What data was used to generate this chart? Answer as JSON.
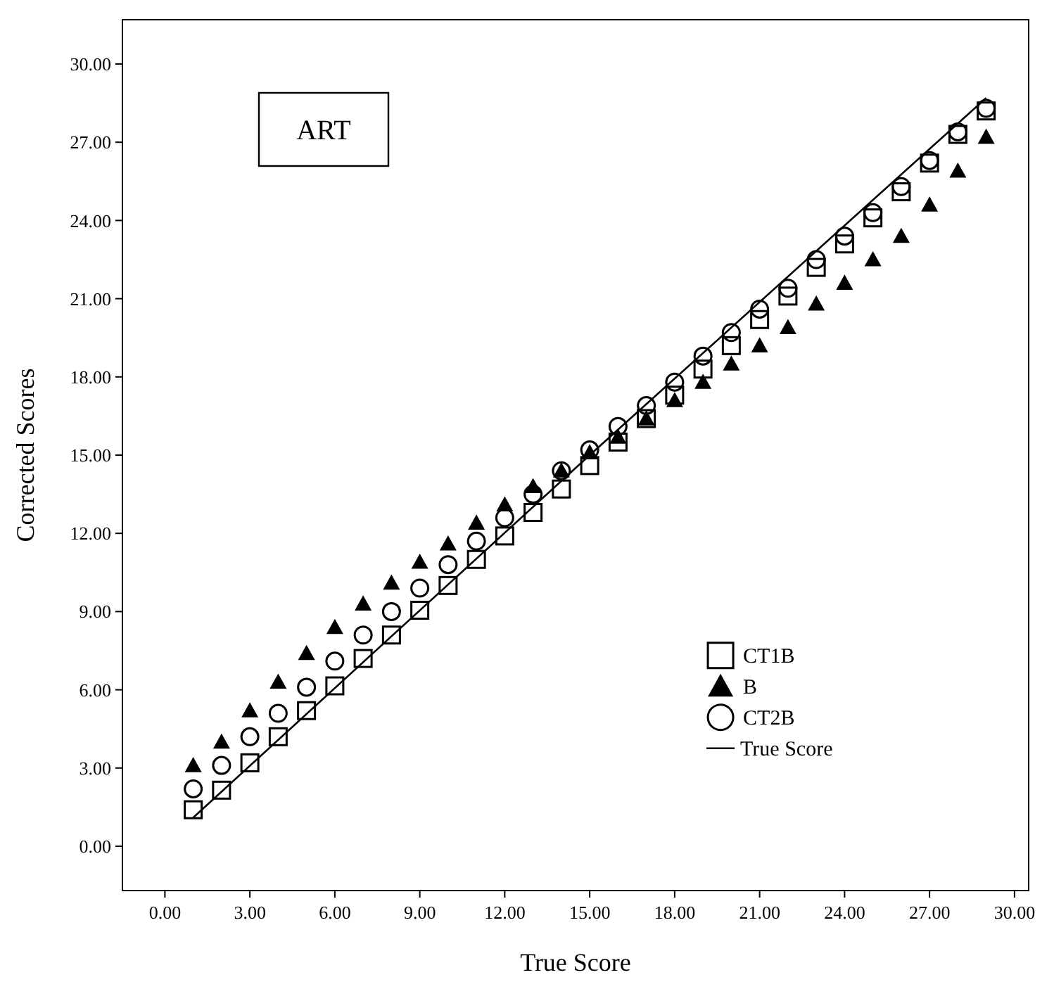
{
  "chart_data": {
    "type": "scatter",
    "xlabel": "True Score",
    "ylabel": "Corrected Scores",
    "annotations": [
      "ART"
    ],
    "x": [
      1,
      2,
      3,
      4,
      5,
      6,
      7,
      8,
      9,
      10,
      11,
      12,
      13,
      14,
      15,
      16,
      17,
      18,
      19,
      20,
      21,
      22,
      23,
      24,
      25,
      26,
      27,
      28,
      29
    ],
    "series": [
      {
        "name": "CT1B",
        "color": "#000000",
        "marker": "square",
        "values": [
          1.4,
          2.15,
          3.2,
          4.2,
          5.2,
          6.15,
          7.2,
          8.1,
          9.05,
          10.0,
          11.0,
          11.9,
          12.8,
          13.7,
          14.6,
          15.5,
          16.4,
          17.3,
          18.3,
          19.2,
          20.2,
          21.1,
          22.2,
          23.1,
          24.1,
          25.1,
          26.2,
          27.3,
          28.2
        ]
      },
      {
        "name": "B",
        "color": "#000000",
        "marker": "triangle",
        "values": [
          3.1,
          4.0,
          5.2,
          6.3,
          7.4,
          8.4,
          9.3,
          10.1,
          10.9,
          11.6,
          12.4,
          13.1,
          13.8,
          14.4,
          15.1,
          15.7,
          16.4,
          17.1,
          17.8,
          18.5,
          19.2,
          19.9,
          20.8,
          21.6,
          22.5,
          23.4,
          24.6,
          25.9,
          27.2
        ]
      },
      {
        "name": "CT2B",
        "color": "#000000",
        "marker": "circle",
        "values": [
          2.2,
          3.1,
          4.2,
          5.1,
          6.1,
          7.1,
          8.1,
          9.0,
          9.9,
          10.8,
          11.7,
          12.6,
          13.5,
          14.4,
          15.2,
          16.1,
          16.9,
          17.8,
          18.8,
          19.7,
          20.6,
          21.4,
          22.5,
          23.4,
          24.3,
          25.3,
          26.3,
          27.4,
          28.3
        ]
      },
      {
        "name": "True Score",
        "type": "line",
        "color": "#000000",
        "marker": "none",
        "line_style": "solid",
        "x": [
          1,
          15,
          29
        ],
        "values": [
          1.1,
          15.0,
          28.7
        ]
      }
    ],
    "xlim": [
      -1.5,
      30.5
    ],
    "ylim": [
      -1.7,
      31.7
    ],
    "xticks": [
      {
        "value": 0,
        "label": "0.00"
      },
      {
        "value": 3,
        "label": "3.00"
      },
      {
        "value": 6,
        "label": "6.00"
      },
      {
        "value": 9,
        "label": "9.00"
      },
      {
        "value": 12,
        "label": "12.00"
      },
      {
        "value": 15,
        "label": "15.00"
      },
      {
        "value": 18,
        "label": "18.00"
      },
      {
        "value": 21,
        "label": "21.00"
      },
      {
        "value": 24,
        "label": "24.00"
      },
      {
        "value": 27,
        "label": "27.00"
      },
      {
        "value": 30,
        "label": "30.00"
      }
    ],
    "yticks": [
      {
        "value": 0,
        "label": "0.00"
      },
      {
        "value": 3,
        "label": "3.00"
      },
      {
        "value": 6,
        "label": "6.00"
      },
      {
        "value": 9,
        "label": "9.00"
      },
      {
        "value": 12,
        "label": "12.00"
      },
      {
        "value": 15,
        "label": "15.00"
      },
      {
        "value": 18,
        "label": "18.00"
      },
      {
        "value": 21,
        "label": "21.00"
      },
      {
        "value": 24,
        "label": "24.00"
      },
      {
        "value": 27,
        "label": "27.00"
      },
      {
        "value": 30,
        "label": "30.00"
      }
    ],
    "grid": false,
    "legend": "bottom right"
  }
}
